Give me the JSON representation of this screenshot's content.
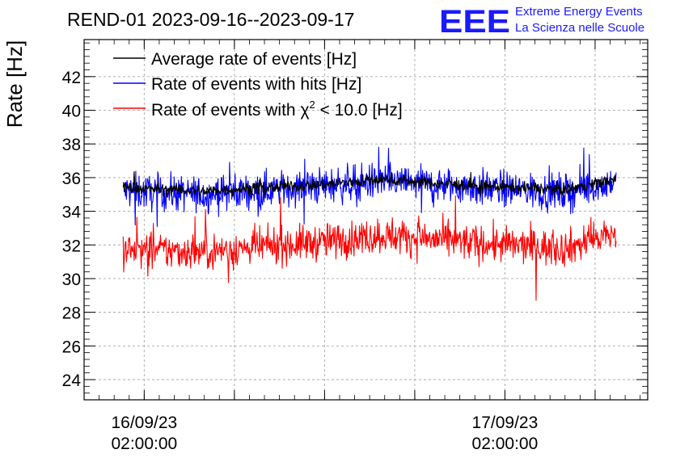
{
  "chart_data": {
    "type": "line",
    "title": "REND-01 2023-09-16--2023-09-17",
    "xlabel": "",
    "ylabel": "Rate [Hz]",
    "ylim": [
      22.8,
      44.2
    ],
    "yticks": [
      24,
      26,
      28,
      30,
      32,
      34,
      36,
      38,
      40,
      42
    ],
    "x_unit": "hours since 2023-09-16 00:00:00",
    "xlim": [
      -2.0,
      35.5
    ],
    "x_start": 0.6,
    "x_end": 33.4,
    "xticks": [
      {
        "x": 2,
        "line1": "16/09/23",
        "line2": "02:00:00"
      },
      {
        "x": 26,
        "line1": "17/09/23",
        "line2": "02:00:00"
      }
    ],
    "grid": true,
    "legend_position": "top-left",
    "series": [
      {
        "name": "Average rate of events [Hz]",
        "color": "#000000",
        "mean": 35.5,
        "noise_sd": 0.25,
        "trend": [
          [
            0.6,
            35.4
          ],
          [
            6,
            35.2
          ],
          [
            14,
            35.6
          ],
          [
            18,
            35.9
          ],
          [
            24,
            35.5
          ],
          [
            30,
            35.3
          ],
          [
            33.4,
            35.9
          ]
        ]
      },
      {
        "name": "Rate of events with hits [Hz]",
        "color": "#0000ff",
        "mean": 35.3,
        "noise_sd": 0.75,
        "trend": [
          [
            0.6,
            35.2
          ],
          [
            6,
            35.0
          ],
          [
            14,
            35.5
          ],
          [
            18,
            35.8
          ],
          [
            24,
            35.4
          ],
          [
            30,
            35.1
          ],
          [
            33.4,
            35.8
          ]
        ]
      },
      {
        "name": "Rate of events with χ² < 10.0 [Hz]",
        "color": "#ff0000",
        "mean": 32.0,
        "noise_sd": 0.75,
        "trend": [
          [
            0.6,
            31.7
          ],
          [
            6,
            31.6
          ],
          [
            14,
            32.2
          ],
          [
            18,
            32.6
          ],
          [
            24,
            32.1
          ],
          [
            30,
            31.8
          ],
          [
            33.4,
            32.7
          ]
        ]
      }
    ]
  },
  "legend": {
    "items": [
      {
        "name": "Average rate of events [Hz]",
        "color": "#000000"
      },
      {
        "name": "Rate of events with hits [Hz]",
        "color": "#0000ff"
      },
      {
        "name_prefix": "Rate of events with ",
        "chi": "χ",
        "sup": "2",
        "name_suffix": " < 10.0 [Hz]",
        "color": "#ff0000"
      }
    ]
  },
  "logo": {
    "mark": "EEE",
    "line1": "Extreme Energy Events",
    "line2": "La Scienza nelle Scuole",
    "color": "#1a1aff"
  }
}
